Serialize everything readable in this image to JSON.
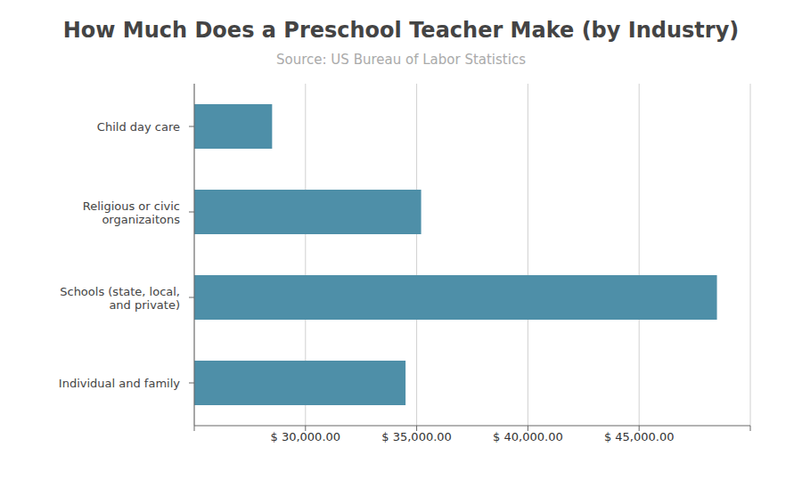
{
  "chart_data": {
    "type": "bar",
    "orientation": "horizontal",
    "title": "How Much Does a Preschool Teacher Make (by Industry)",
    "subtitle": "Source: US Bureau of Labor Statistics",
    "categories": [
      "Individual and family",
      "Schools (state, local,\nand private)",
      "Religious or civic\norganizaitons",
      "Child day care"
    ],
    "values": [
      34500,
      48500,
      35200,
      28500
    ],
    "color": "#4e8fa8",
    "xlim": [
      25000,
      50000
    ],
    "xticks": [
      {
        "value": 25000,
        "label": ""
      },
      {
        "value": 30000,
        "label": "$ 30,000.00"
      },
      {
        "value": 35000,
        "label": "$ 35,000.00"
      },
      {
        "value": 40000,
        "label": "$ 40,000.00"
      },
      {
        "value": 45000,
        "label": "$ 45,000.00"
      },
      {
        "value": 50000,
        "label": ""
      }
    ],
    "grid": true
  }
}
